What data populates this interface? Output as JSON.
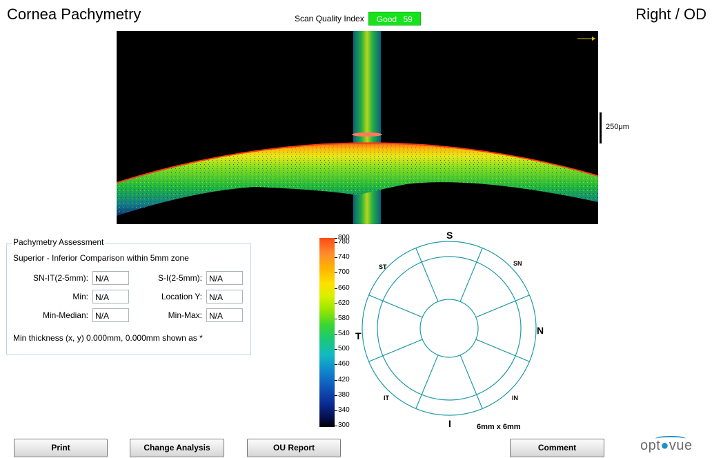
{
  "header": {
    "title": "Cornea Pachymetry",
    "eye": "Right / OD",
    "scan_quality_label": "Scan Quality Index",
    "scan_quality_status": "Good",
    "scan_quality_value": "59"
  },
  "scan": {
    "scale_label": "250μm"
  },
  "assessment": {
    "legend": "Pachymetry Assessment",
    "subtitle": "Superior - Inferior Comparison within 5mm zone",
    "metrics": {
      "sn_it_label": "SN-IT(2-5mm):",
      "sn_it_value": "N/A",
      "s_i_label": "S-I(2-5mm):",
      "s_i_value": "N/A",
      "min_label": "Min:",
      "min_value": "N/A",
      "location_y_label": "Location Y:",
      "location_y_value": "N/A",
      "min_median_label": "Min-Median:",
      "min_median_value": "N/A",
      "min_max_label": "Min-Max:",
      "min_max_value": "N/A"
    },
    "note": "Min thickness (x, y) 0.000mm, 0.000mm shown as *"
  },
  "colorbar": {
    "labels": [
      "800",
      "780",
      "740",
      "700",
      "660",
      "620",
      "580",
      "540",
      "500",
      "460",
      "420",
      "380",
      "340",
      "300"
    ]
  },
  "map": {
    "sectors": {
      "s": "S",
      "sn": "SN",
      "n": "N",
      "in": "IN",
      "i": "I",
      "it": "IT",
      "t": "T",
      "st": "ST"
    },
    "size": "6mm x 6mm"
  },
  "buttons": {
    "print": "Print",
    "change_analysis": "Change Analysis",
    "ou_report": "OU Report",
    "comment": "Comment"
  },
  "logo": {
    "text_a": "opt",
    "text_b": "vue"
  },
  "colors": {
    "accent": "#1e90c8",
    "good": "#17e21c",
    "map_line": "#1e9aa8"
  }
}
